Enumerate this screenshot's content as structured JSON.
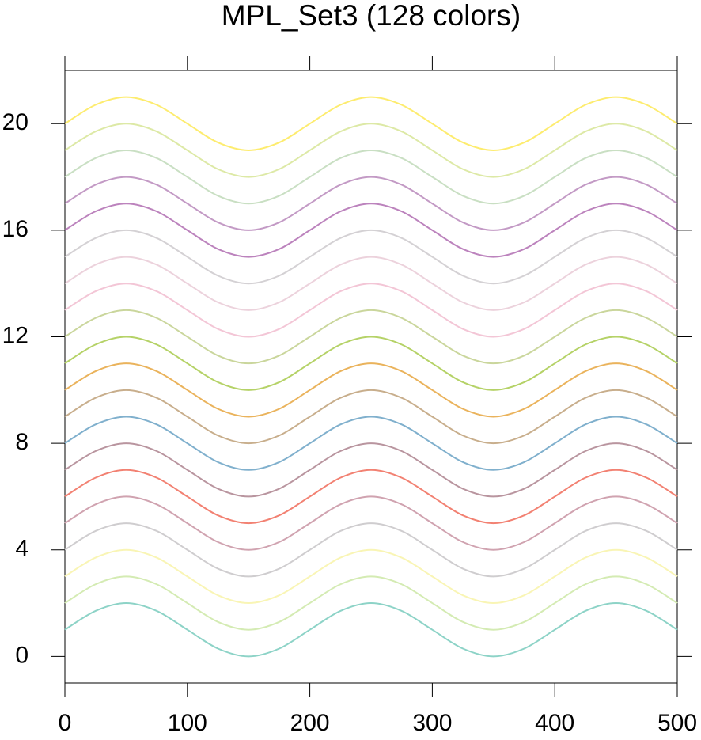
{
  "chart_data": {
    "type": "line",
    "title": "MPL_Set3 (128 colors)",
    "x": [
      0,
      25,
      50,
      75,
      100,
      125,
      150,
      175,
      200,
      225,
      250,
      275,
      300,
      325,
      350,
      375,
      400,
      425,
      450,
      475,
      500
    ],
    "xlim": [
      0,
      500
    ],
    "xticks": [
      0,
      100,
      200,
      300,
      400,
      500
    ],
    "ylim": [
      -1,
      22
    ],
    "yticks": [
      0,
      4,
      8,
      12,
      16,
      20
    ],
    "series": [
      {
        "color": "#8dd3c7",
        "values": [
          1,
          1.707,
          2,
          1.707,
          1,
          0.293,
          0,
          0.293,
          1,
          1.707,
          2,
          1.707,
          1,
          0.293,
          0,
          0.293,
          1,
          1.707,
          2,
          1.707,
          1
        ]
      },
      {
        "color": "#d4ebb3",
        "values": [
          2,
          2.707,
          3,
          2.707,
          2,
          1.293,
          1,
          1.293,
          2,
          2.707,
          3,
          2.707,
          2,
          1.293,
          1,
          1.293,
          2,
          2.707,
          3,
          2.707,
          2
        ]
      },
      {
        "color": "#f9f5b5",
        "values": [
          3,
          3.707,
          4,
          3.707,
          3,
          2.293,
          2,
          2.293,
          3,
          3.707,
          4,
          3.707,
          3,
          2.293,
          2,
          2.293,
          3,
          3.707,
          4,
          3.707,
          3
        ]
      },
      {
        "color": "#cfcdcf",
        "values": [
          4,
          4.707,
          5,
          4.707,
          4,
          3.293,
          3,
          3.293,
          4,
          4.707,
          5,
          4.707,
          4,
          3.293,
          3,
          3.293,
          4,
          4.707,
          5,
          4.707,
          4
        ]
      },
      {
        "color": "#d0a3b0",
        "values": [
          5,
          5.707,
          6,
          5.707,
          5,
          4.293,
          4,
          4.293,
          5,
          5.707,
          6,
          5.707,
          5,
          4.293,
          4,
          4.293,
          5,
          5.707,
          6,
          5.707,
          5
        ]
      },
      {
        "color": "#f28172",
        "values": [
          6,
          6.707,
          7,
          6.707,
          6,
          5.293,
          5,
          5.293,
          6,
          6.707,
          7,
          6.707,
          6,
          5.293,
          5,
          5.293,
          6,
          6.707,
          7,
          6.707,
          6
        ]
      },
      {
        "color": "#b9959f",
        "values": [
          7,
          7.707,
          8,
          7.707,
          7,
          6.293,
          6,
          6.293,
          7,
          7.707,
          8,
          7.707,
          7,
          6.293,
          6,
          6.293,
          7,
          7.707,
          8,
          7.707,
          7
        ]
      },
      {
        "color": "#80b0cd",
        "values": [
          8,
          8.707,
          9,
          8.707,
          8,
          7.293,
          7,
          7.293,
          8,
          8.707,
          9,
          8.707,
          8,
          7.293,
          7,
          7.293,
          8,
          8.707,
          9,
          8.707,
          8
        ]
      },
      {
        "color": "#c8ae8c",
        "values": [
          9,
          9.707,
          10,
          9.707,
          9,
          8.293,
          8,
          8.293,
          9,
          9.707,
          10,
          9.707,
          9,
          8.293,
          8,
          8.293,
          9,
          9.707,
          10,
          9.707,
          9
        ]
      },
      {
        "color": "#eab35c",
        "values": [
          10,
          10.707,
          11,
          10.707,
          10,
          9.293,
          9,
          9.293,
          10,
          10.707,
          11,
          10.707,
          10,
          9.293,
          9,
          9.293,
          10,
          10.707,
          11,
          10.707,
          10
        ]
      },
      {
        "color": "#b5d267",
        "values": [
          11,
          11.707,
          12,
          11.707,
          11,
          10.293,
          10,
          10.293,
          11,
          11.707,
          12,
          11.707,
          11,
          10.293,
          10,
          10.293,
          11,
          11.707,
          12,
          11.707,
          11
        ]
      },
      {
        "color": "#cad69c",
        "values": [
          12,
          12.707,
          13,
          12.707,
          12,
          11.293,
          11,
          11.293,
          12,
          12.707,
          13,
          12.707,
          12,
          11.293,
          11,
          11.293,
          12,
          12.707,
          13,
          12.707,
          12
        ]
      },
      {
        "color": "#f3c6d6",
        "values": [
          13,
          13.707,
          14,
          13.707,
          13,
          12.293,
          12,
          12.293,
          13,
          13.707,
          14,
          13.707,
          13,
          12.293,
          12,
          12.293,
          13,
          13.707,
          14,
          13.707,
          13
        ]
      },
      {
        "color": "#ecd2dc",
        "values": [
          14,
          14.707,
          15,
          14.707,
          14,
          13.293,
          13,
          13.293,
          14,
          14.707,
          15,
          14.707,
          14,
          13.293,
          13,
          13.293,
          14,
          14.707,
          15,
          14.707,
          14
        ]
      },
      {
        "color": "#d4d1d4",
        "values": [
          15,
          15.707,
          16,
          15.707,
          15,
          14.293,
          14,
          14.293,
          15,
          15.707,
          16,
          15.707,
          15,
          14.293,
          14,
          14.293,
          15,
          15.707,
          16,
          15.707,
          15
        ]
      },
      {
        "color": "#bc83bd",
        "values": [
          16,
          16.707,
          17,
          16.707,
          16,
          15.293,
          15,
          15.293,
          16,
          16.707,
          17,
          16.707,
          16,
          15.293,
          15,
          15.293,
          16,
          16.707,
          17,
          16.707,
          16
        ]
      },
      {
        "color": "#c39ac5",
        "values": [
          17,
          17.707,
          18,
          17.707,
          17,
          16.293,
          16,
          16.293,
          17,
          17.707,
          18,
          17.707,
          17,
          16.293,
          16,
          16.293,
          17,
          17.707,
          18,
          17.707,
          17
        ]
      },
      {
        "color": "#c9dfc3",
        "values": [
          18,
          18.707,
          19,
          18.707,
          18,
          17.293,
          17,
          17.293,
          18,
          18.707,
          19,
          18.707,
          18,
          17.293,
          17,
          17.293,
          18,
          18.707,
          19,
          18.707,
          18
        ]
      },
      {
        "color": "#dde9a6",
        "values": [
          19,
          19.707,
          20,
          19.707,
          19,
          18.293,
          18,
          18.293,
          19,
          19.707,
          20,
          19.707,
          19,
          18.293,
          18,
          18.293,
          19,
          19.707,
          20,
          19.707,
          19
        ]
      },
      {
        "color": "#fdec6f",
        "values": [
          20,
          20.707,
          21,
          20.707,
          20,
          19.293,
          19,
          19.293,
          20,
          20.707,
          21,
          20.707,
          20,
          19.293,
          19,
          19.293,
          20,
          20.707,
          21,
          20.707,
          20
        ]
      }
    ]
  }
}
